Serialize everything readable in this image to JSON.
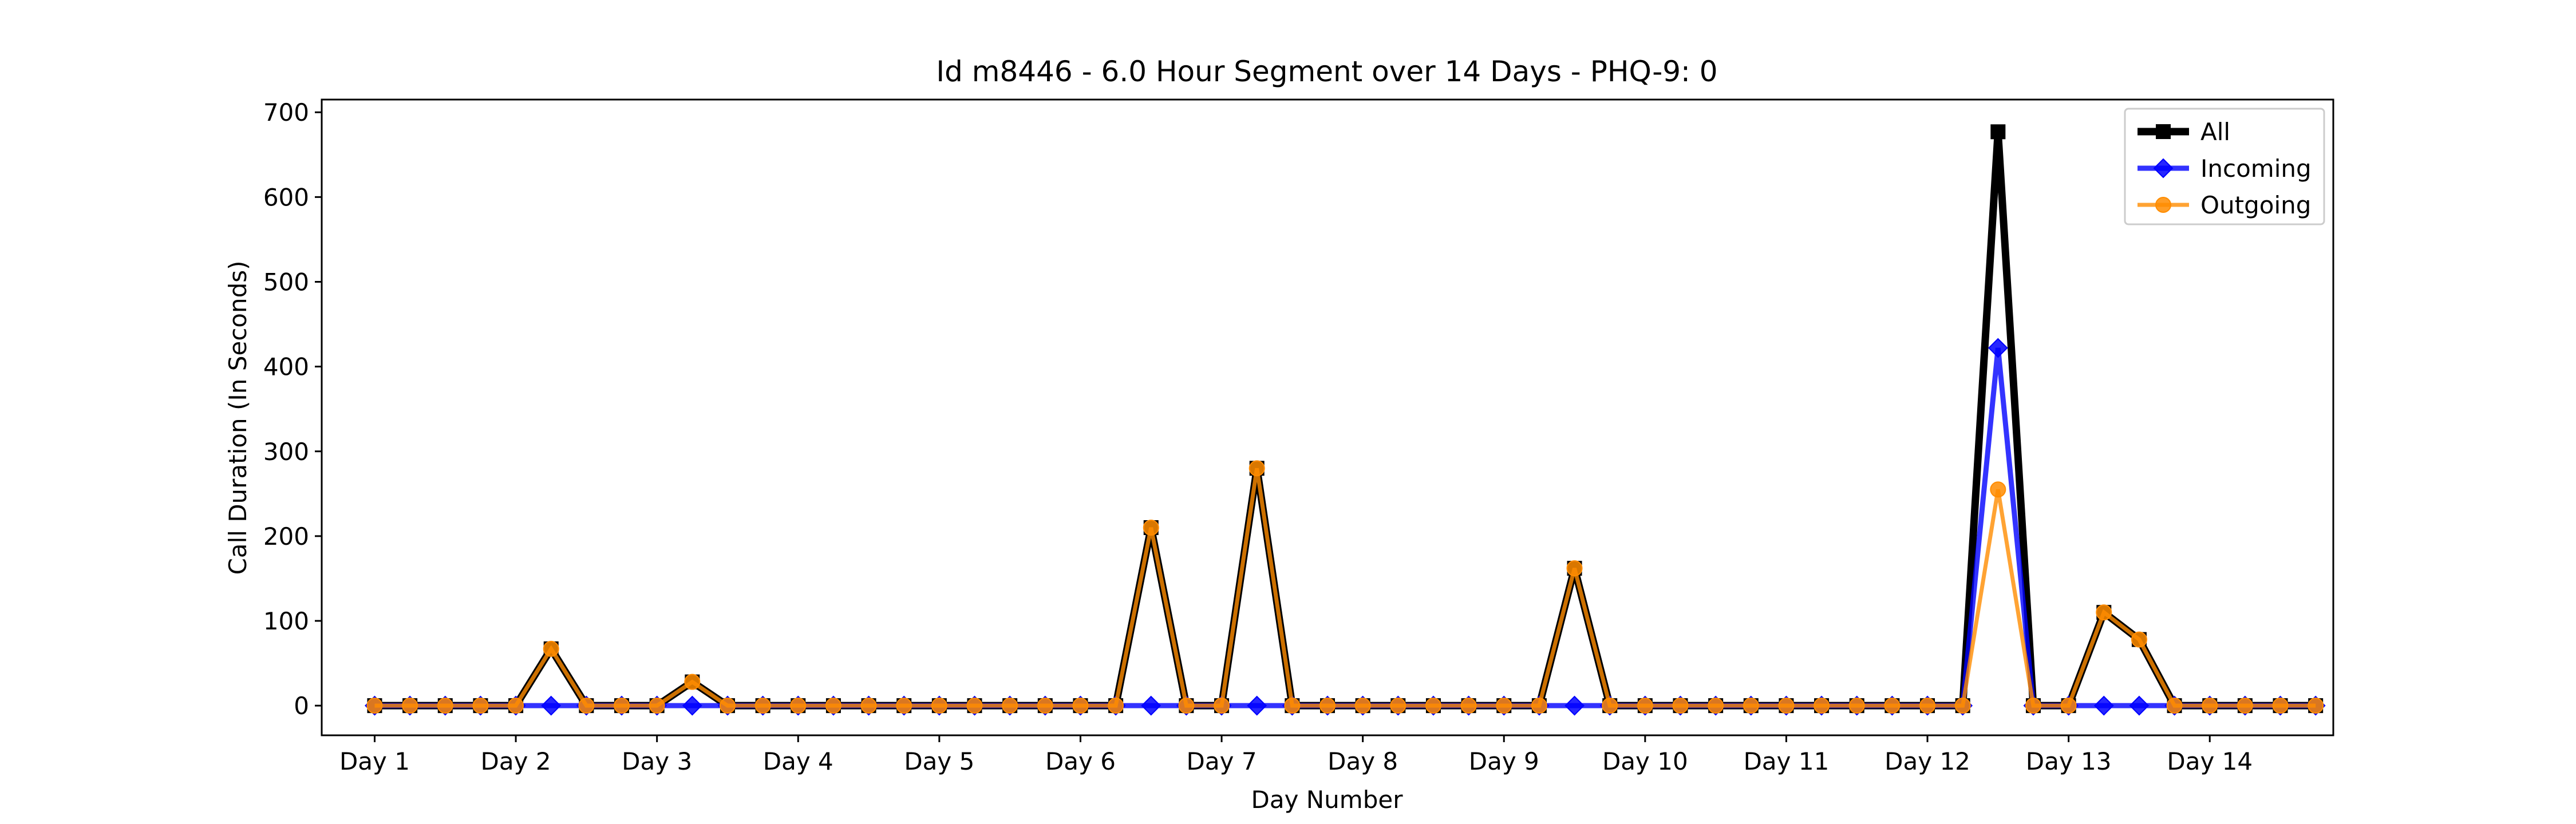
{
  "chart_data": {
    "type": "line",
    "title": "Id m8446 - 6.0 Hour Segment over 14 Days - PHQ-9: 0",
    "xlabel": "Day Number",
    "ylabel": "Call Duration (In Seconds)",
    "ylim": [
      -35,
      715
    ],
    "yticks": [
      0,
      100,
      200,
      300,
      400,
      500,
      600,
      700
    ],
    "xlim": [
      -1.5,
      55.5
    ],
    "xticks": [
      {
        "pos": 0,
        "label": "Day 1"
      },
      {
        "pos": 4,
        "label": "Day 2"
      },
      {
        "pos": 8,
        "label": "Day 3"
      },
      {
        "pos": 12,
        "label": "Day 4"
      },
      {
        "pos": 16,
        "label": "Day 5"
      },
      {
        "pos": 20,
        "label": "Day 6"
      },
      {
        "pos": 24,
        "label": "Day 7"
      },
      {
        "pos": 28,
        "label": "Day 8"
      },
      {
        "pos": 32,
        "label": "Day 9"
      },
      {
        "pos": 36,
        "label": "Day 10"
      },
      {
        "pos": 40,
        "label": "Day 11"
      },
      {
        "pos": 44,
        "label": "Day 12"
      },
      {
        "pos": 48,
        "label": "Day 13"
      },
      {
        "pos": 52,
        "label": "Day 14"
      }
    ],
    "grid": false,
    "legend_position": "top-right",
    "x": [
      0,
      1,
      2,
      3,
      4,
      5,
      6,
      7,
      8,
      9,
      10,
      11,
      12,
      13,
      14,
      15,
      16,
      17,
      18,
      19,
      20,
      21,
      22,
      23,
      24,
      25,
      26,
      27,
      28,
      29,
      30,
      31,
      32,
      33,
      34,
      35,
      36,
      37,
      38,
      39,
      40,
      41,
      42,
      43,
      44,
      45,
      46,
      47,
      48,
      49,
      50,
      51,
      52,
      53,
      54,
      55
    ],
    "series": [
      {
        "name": "All",
        "color": "#000000",
        "marker": "square",
        "values": [
          0,
          0,
          0,
          0,
          0,
          67,
          0,
          0,
          0,
          28,
          0,
          0,
          0,
          0,
          0,
          0,
          0,
          0,
          0,
          0,
          0,
          0,
          210,
          0,
          0,
          280,
          0,
          0,
          0,
          0,
          0,
          0,
          0,
          0,
          162,
          0,
          0,
          0,
          0,
          0,
          0,
          0,
          0,
          0,
          0,
          0,
          677,
          0,
          0,
          110,
          78,
          0,
          0,
          0,
          0,
          0
        ]
      },
      {
        "name": "Incoming",
        "color": "#0000ff",
        "marker": "diamond",
        "values": [
          0,
          0,
          0,
          0,
          0,
          0,
          0,
          0,
          0,
          0,
          0,
          0,
          0,
          0,
          0,
          0,
          0,
          0,
          0,
          0,
          0,
          0,
          0,
          0,
          0,
          0,
          0,
          0,
          0,
          0,
          0,
          0,
          0,
          0,
          0,
          0,
          0,
          0,
          0,
          0,
          0,
          0,
          0,
          0,
          0,
          0,
          422,
          0,
          0,
          0,
          0,
          0,
          0,
          0,
          0,
          0
        ]
      },
      {
        "name": "Outgoing",
        "color": "#ff8c00",
        "marker": "circle",
        "values": [
          0,
          0,
          0,
          0,
          0,
          67,
          0,
          0,
          0,
          28,
          0,
          0,
          0,
          0,
          0,
          0,
          0,
          0,
          0,
          0,
          0,
          0,
          210,
          0,
          0,
          280,
          0,
          0,
          0,
          0,
          0,
          0,
          0,
          0,
          162,
          0,
          0,
          0,
          0,
          0,
          0,
          0,
          0,
          0,
          0,
          0,
          255,
          0,
          0,
          110,
          78,
          0,
          0,
          0,
          0,
          0
        ]
      }
    ]
  }
}
